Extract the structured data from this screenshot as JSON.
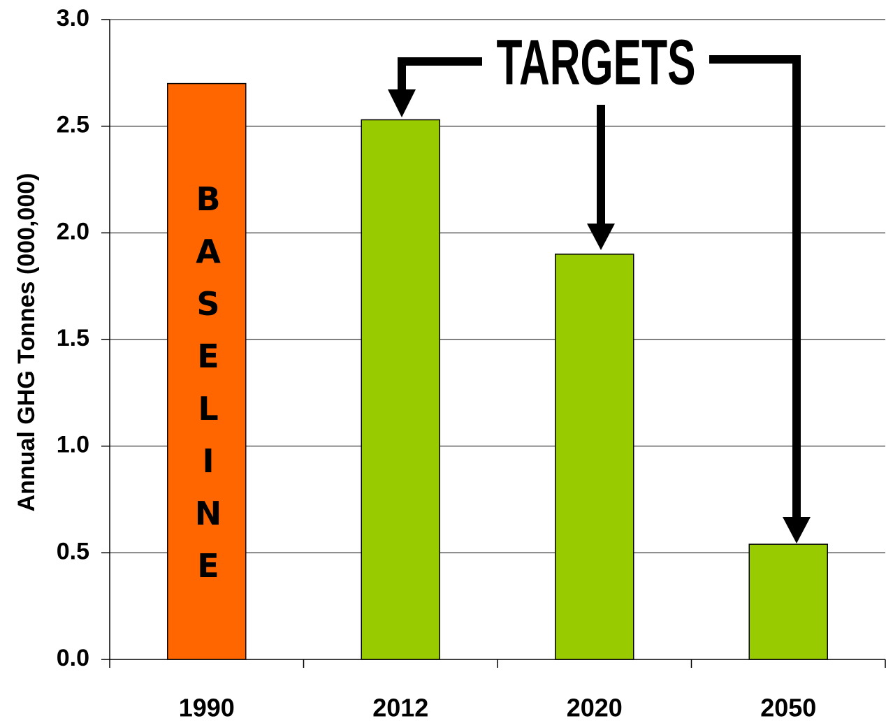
{
  "chart_data": {
    "type": "bar",
    "y_axis_label": "Annual GHG Tonnes (000,000)",
    "categories": [
      "1990",
      "2012",
      "2020",
      "2050"
    ],
    "values": [
      2.7,
      2.53,
      1.9,
      0.54
    ],
    "colors": [
      "#ff6600",
      "#99cc00",
      "#99cc00",
      "#99cc00"
    ],
    "ylim": [
      0,
      3
    ],
    "yticks": [
      {
        "value": 0,
        "label": "0.0"
      },
      0.5,
      {
        "value": 1,
        "label": "1.0"
      },
      1.5,
      {
        "value": 2,
        "label": "2.0"
      },
      2.5,
      {
        "value": 3,
        "label": "3.0"
      }
    ],
    "grid": true,
    "bar_annotation": "BASELINE",
    "callout": "TARGETS"
  }
}
